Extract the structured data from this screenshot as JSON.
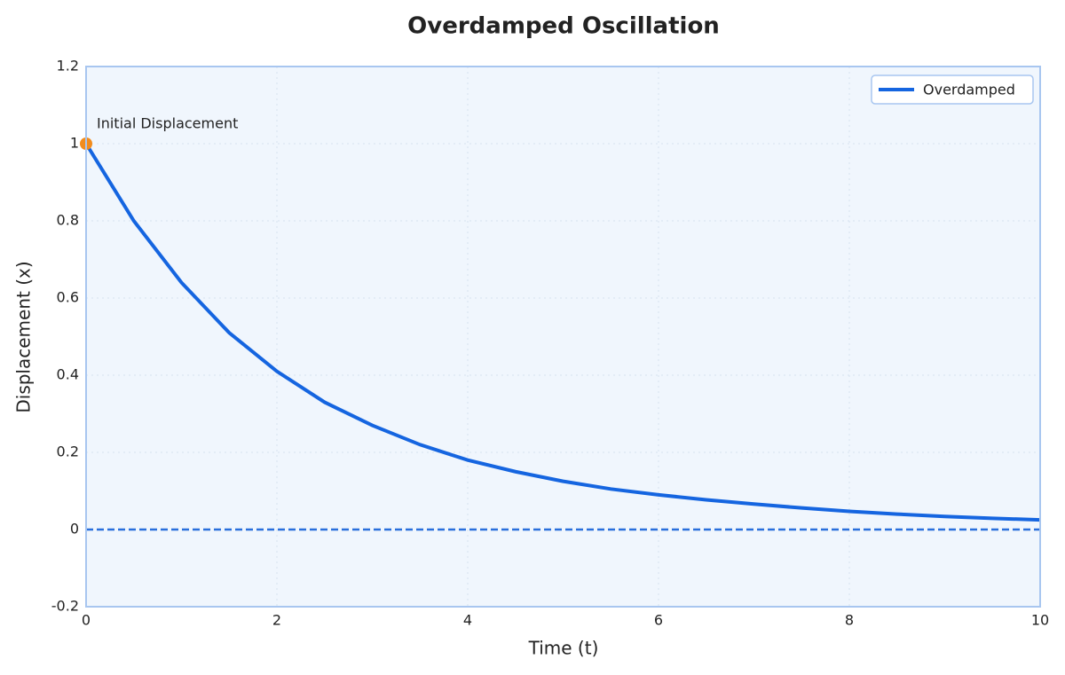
{
  "chart_data": {
    "type": "line",
    "title": "Overdamped Oscillation",
    "x_label": "Time (t)",
    "y_label": "Displacement (x)",
    "x": [
      0,
      0.5,
      1,
      1.5,
      2,
      2.5,
      3,
      3.5,
      4,
      4.5,
      5,
      5.5,
      6,
      6.5,
      7,
      7.5,
      8,
      8.5,
      9,
      9.5,
      10
    ],
    "series": [
      {
        "name": "Overdamped",
        "color": "#1565e0",
        "values": [
          1,
          0.8,
          0.64,
          0.51,
          0.41,
          0.33,
          0.27,
          0.22,
          0.18,
          0.15,
          0.125,
          0.105,
          0.09,
          0.077,
          0.066,
          0.056,
          0.047,
          0.04,
          0.034,
          0.029,
          0.025
        ]
      }
    ],
    "xlim": [
      0,
      10
    ],
    "xticks": [
      0,
      2,
      4,
      6,
      8,
      10
    ],
    "ylim": [
      -0.2,
      1.2
    ],
    "yticks": [
      -0.2,
      0,
      0.2,
      0.4,
      0.6,
      0.8,
      1,
      1.2
    ],
    "grid": true,
    "legend": "upper-right",
    "reference_line": 0,
    "annotation": {
      "text": "Initial Displacement",
      "x": 0,
      "y": 1,
      "color": "#f28c1c"
    }
  }
}
